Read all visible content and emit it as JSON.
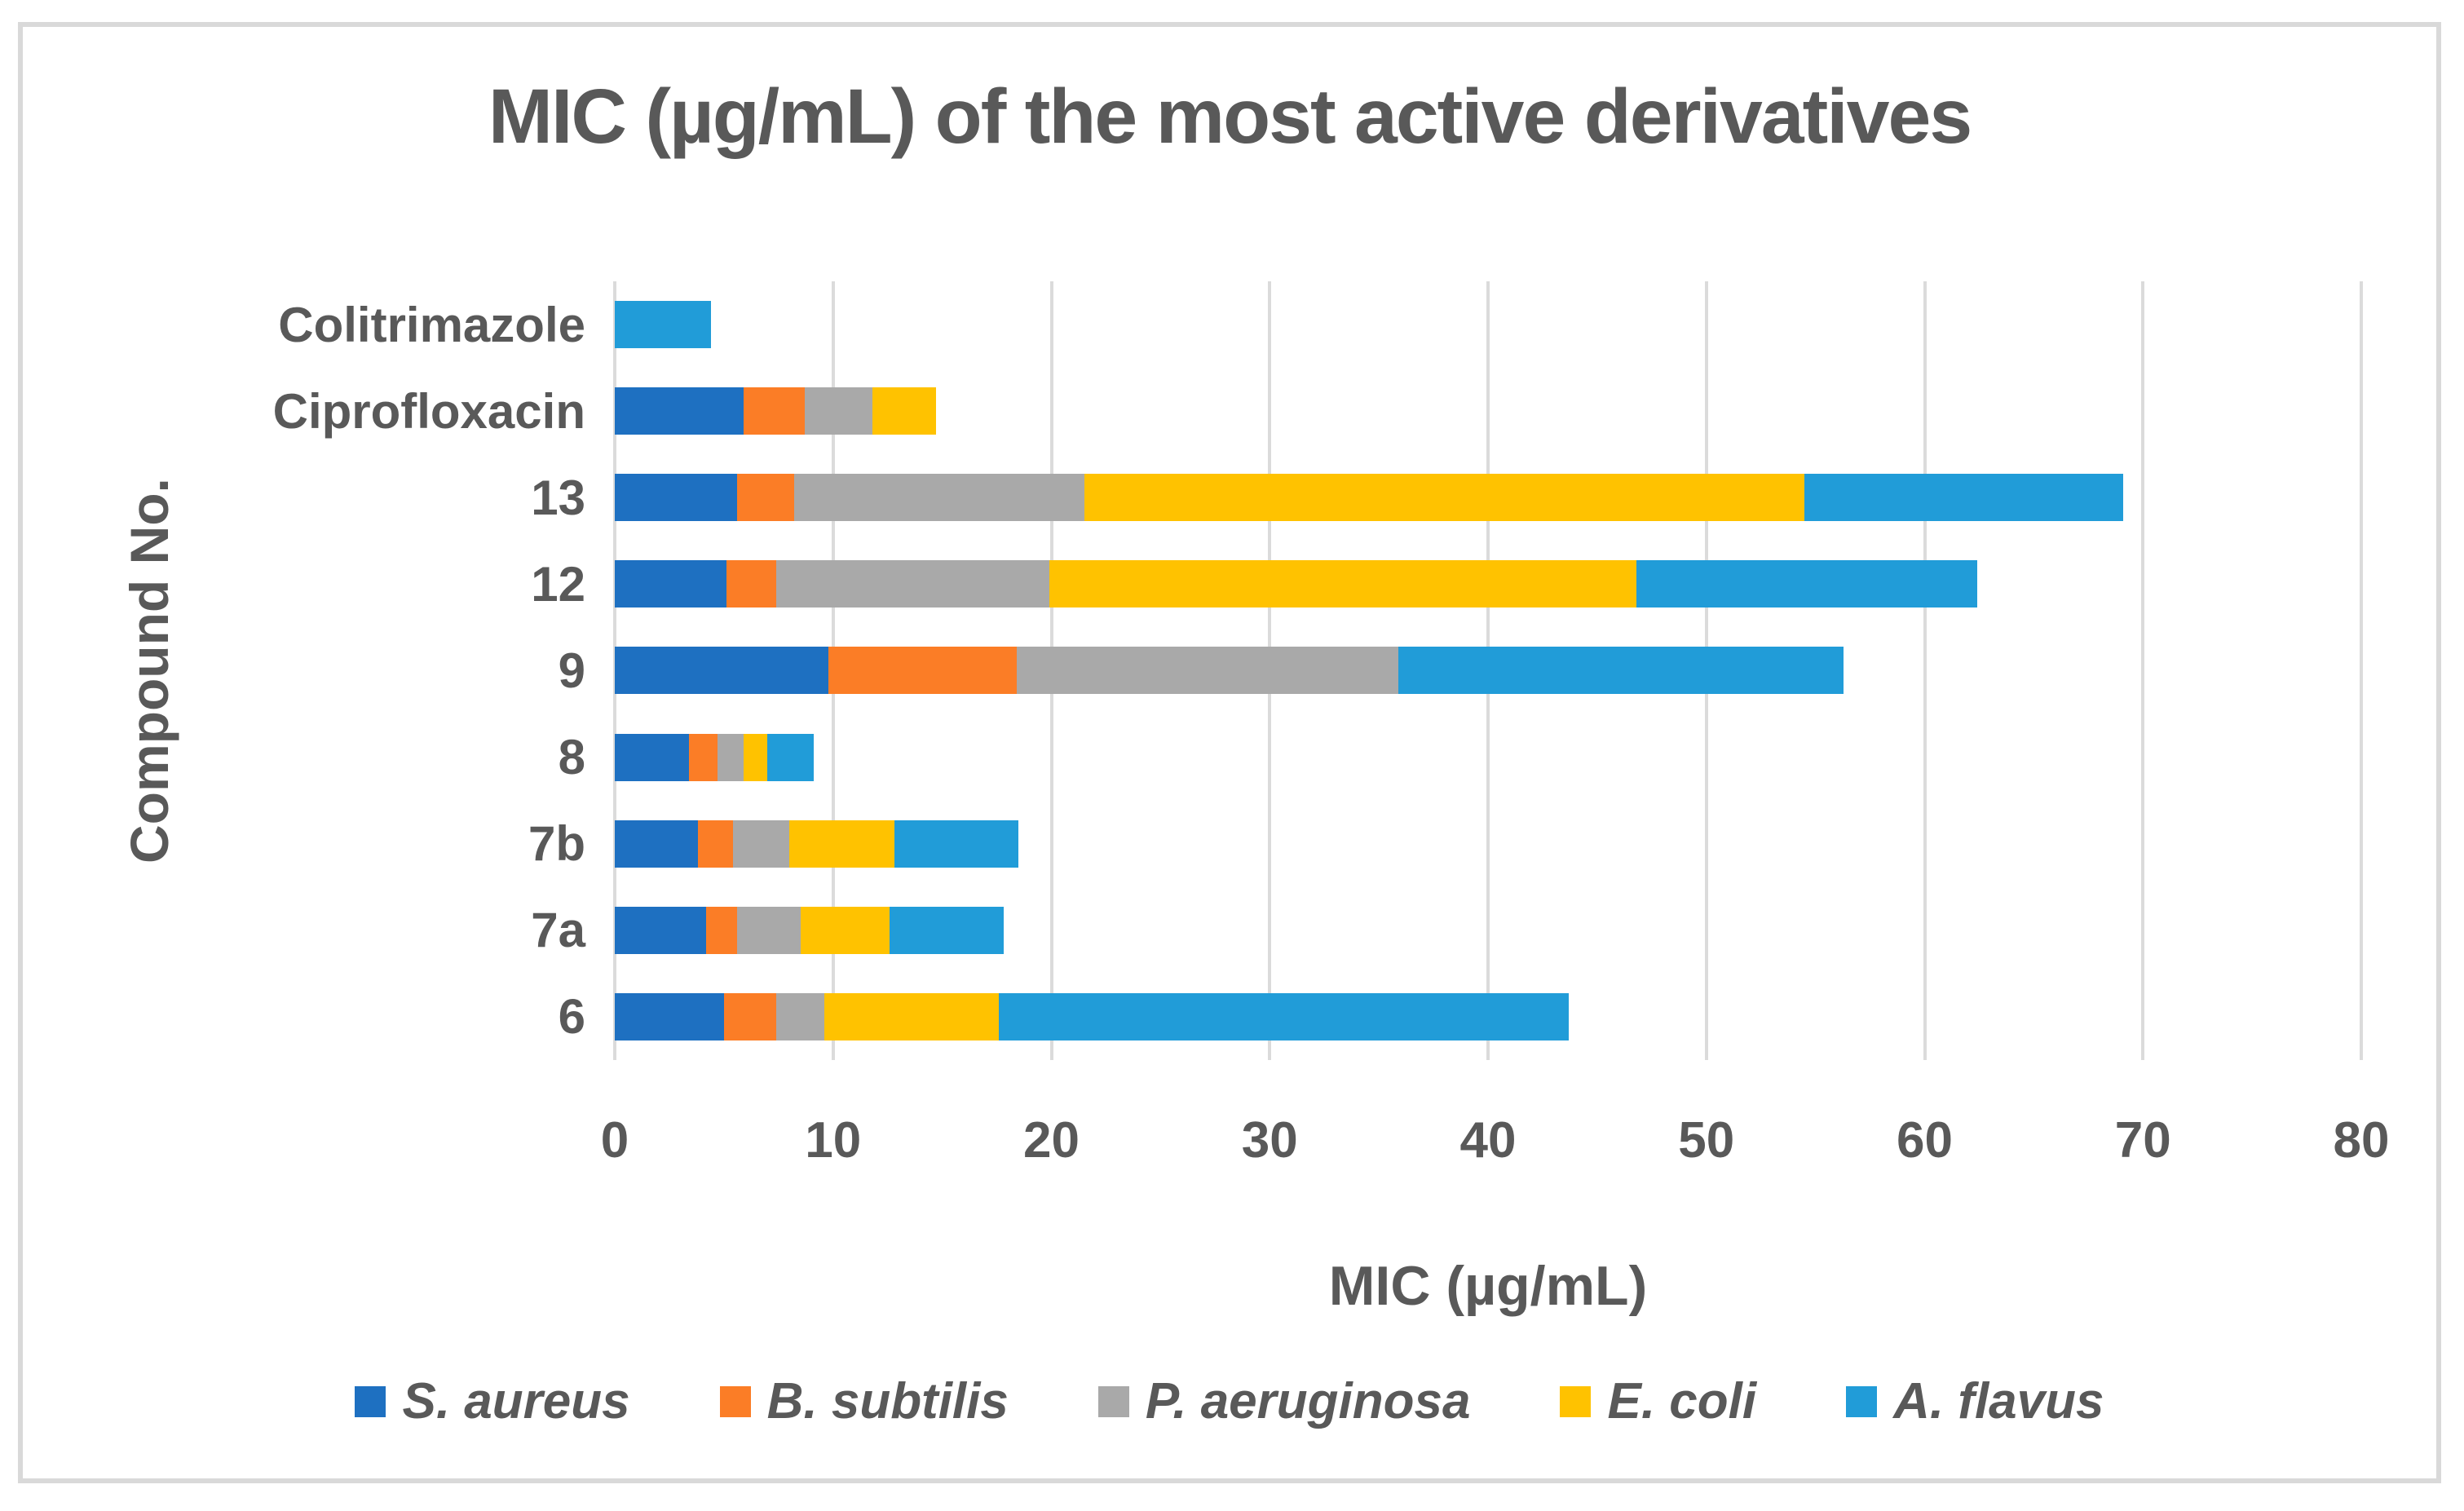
{
  "chart_data": {
    "type": "bar",
    "orientation": "horizontal-stacked",
    "title": "MIC (µg/mL) of the most active derivatives",
    "xlabel": "MIC (µg/mL)",
    "ylabel": "Compound No.",
    "xlim": [
      0,
      80
    ],
    "xticks": [
      0,
      10,
      20,
      30,
      40,
      50,
      60,
      70,
      80
    ],
    "grid": "vertical",
    "legend_position": "bottom",
    "categories": [
      "Colitrimazole",
      "Ciprofloxacin",
      "13",
      "12",
      "9",
      "8",
      "7b",
      "7a",
      "6"
    ],
    "series": [
      {
        "name": "S. aureus",
        "color": "#1e70c1",
        "values": [
          0,
          5.9,
          5.6,
          5.1,
          9.8,
          3.4,
          3.8,
          4.2,
          5.0
        ]
      },
      {
        "name": "B. subtilis",
        "color": "#fb7d26",
        "values": [
          0,
          2.8,
          2.6,
          2.3,
          8.6,
          1.3,
          1.6,
          1.4,
          2.4
        ]
      },
      {
        "name": "P. aeruginosa",
        "color": "#a9a9a9",
        "values": [
          0,
          3.1,
          13.3,
          12.5,
          17.5,
          1.2,
          2.6,
          2.9,
          2.2
        ]
      },
      {
        "name": "E. coli",
        "color": "#ffc200",
        "values": [
          0,
          2.9,
          33.0,
          26.9,
          0,
          1.1,
          4.8,
          4.1,
          8.0
        ]
      },
      {
        "name": "A. flavus",
        "color": "#219cd8",
        "values": [
          4.4,
          0,
          14.6,
          15.6,
          20.4,
          2.1,
          5.7,
          5.2,
          26.1
        ]
      }
    ],
    "totals": [
      4.4,
      14.7,
      69.1,
      62.4,
      56.3,
      9.1,
      18.5,
      17.8,
      43.7
    ]
  },
  "style": {
    "text_color": "#595959",
    "gridline_color": "#dbdbdb",
    "frame_border_color": "#d9d9d9",
    "background": "#ffffff"
  }
}
